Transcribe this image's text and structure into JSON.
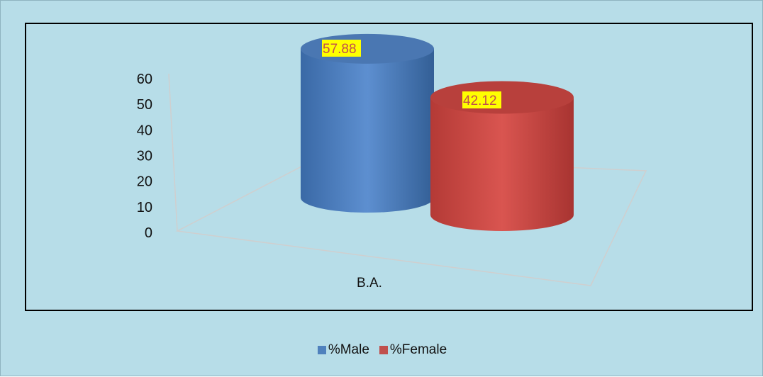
{
  "chart_data": {
    "type": "bar",
    "style": "3d-cylinder",
    "categories": [
      "B.A."
    ],
    "series": [
      {
        "name": "%Male",
        "values": [
          57.88
        ],
        "color": "#4f81bd"
      },
      {
        "name": "%Female",
        "values": [
          42.12
        ],
        "color": "#c0504d"
      }
    ],
    "ylim": [
      0,
      60
    ],
    "yticks": [
      "0",
      "10",
      "20",
      "30",
      "40",
      "50",
      "60"
    ],
    "data_labels": [
      "57.88",
      "42.12"
    ],
    "data_label_style": {
      "background": "#ffff00",
      "color": "#c0504d"
    },
    "legend_position": "bottom",
    "grid": false,
    "background": "#b7dde8"
  }
}
